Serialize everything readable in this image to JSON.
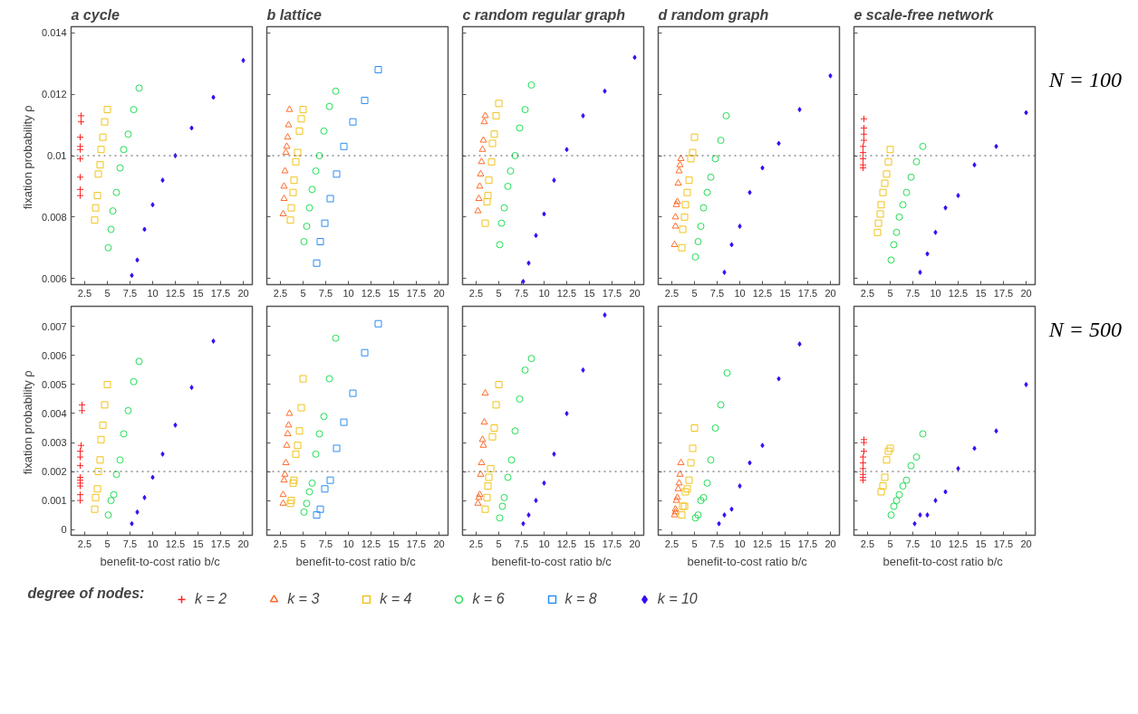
{
  "chart_data": [
    {
      "type": "scatter",
      "title": "a  cycle",
      "ylabel": "fixation probability  ρ",
      "xlim": [
        1,
        21
      ],
      "xticks": [
        2.5,
        5,
        7.5,
        10,
        12.5,
        15,
        17.5,
        20
      ],
      "ylim": [
        0.0058,
        0.0142
      ],
      "yticks": [
        0.006,
        0.008,
        0.01,
        0.012,
        0.014
      ],
      "ref_lines": [
        {
          "axis": "y",
          "value": 0.01,
          "line_style": "dotted"
        }
      ],
      "grid": false,
      "series": [
        {
          "color": "#ff2020",
          "marker": "cross",
          "x": [
            2.1,
            2.1,
            2.0,
            2.0,
            2.0,
            2.0,
            2.0,
            2.0,
            2.0
          ],
          "values": [
            0.0113,
            0.0111,
            0.0106,
            0.0103,
            0.0102,
            0.0099,
            0.0093,
            0.0089,
            0.0087
          ]
        },
        {
          "color": "#f2c21b",
          "marker": "square",
          "x": [
            5.0,
            4.7,
            4.5,
            4.3,
            4.2,
            4.0,
            3.9,
            3.7,
            3.6
          ],
          "values": [
            0.0115,
            0.0111,
            0.0106,
            0.0102,
            0.0097,
            0.0094,
            0.0087,
            0.0083,
            0.0079
          ]
        },
        {
          "color": "#22dd55",
          "marker": "circle",
          "x": [
            8.5,
            7.9,
            7.3,
            6.8,
            6.4,
            6.0,
            5.6,
            5.4,
            5.1
          ],
          "values": [
            0.0122,
            0.0115,
            0.0107,
            0.0102,
            0.0096,
            0.0088,
            0.0082,
            0.0076,
            0.007
          ]
        },
        {
          "color": "#3a0bf5",
          "marker": "diamond",
          "x": [
            20,
            16.7,
            14.3,
            12.5,
            11.1,
            10,
            9.1,
            8.3,
            7.7
          ],
          "values": [
            0.0131,
            0.0119,
            0.0109,
            0.01,
            0.0092,
            0.0084,
            0.0076,
            0.0066,
            0.0061
          ]
        }
      ]
    },
    {
      "type": "scatter",
      "title": "b  lattice",
      "xlim": [
        1,
        21
      ],
      "xticks": [
        2.5,
        5,
        7.5,
        10,
        12.5,
        15,
        17.5,
        20
      ],
      "ylim": [
        0.0058,
        0.0142
      ],
      "yticks": [
        0.006,
        0.008,
        0.01,
        0.012,
        0.014
      ],
      "tick_labels": "x",
      "ref_lines": [
        {
          "axis": "y",
          "value": 0.01,
          "line_style": "dotted"
        }
      ],
      "grid": false,
      "series": [
        {
          "color": "#ff6a28",
          "marker": "triangle",
          "x": [
            3.5,
            3.4,
            3.3,
            3.2,
            3.1,
            3.0,
            2.9,
            2.9,
            2.8
          ],
          "values": [
            0.0115,
            0.011,
            0.0106,
            0.0103,
            0.0101,
            0.0095,
            0.009,
            0.0086,
            0.0081
          ]
        },
        {
          "color": "#f2c21b",
          "marker": "square",
          "x": [
            5.0,
            4.8,
            4.6,
            4.4,
            4.2,
            4.0,
            3.9,
            3.7,
            3.6
          ],
          "values": [
            0.0115,
            0.0112,
            0.0108,
            0.0101,
            0.0098,
            0.0092,
            0.0088,
            0.0083,
            0.0079
          ]
        },
        {
          "color": "#22dd55",
          "marker": "circle",
          "x": [
            8.6,
            7.9,
            7.3,
            6.8,
            6.4,
            6.0,
            5.7,
            5.4,
            5.1
          ],
          "values": [
            0.0121,
            0.0116,
            0.0108,
            0.01,
            0.0095,
            0.0089,
            0.0083,
            0.0077,
            0.0072
          ]
        },
        {
          "color": "#2b8ef0",
          "marker": "square",
          "x": [
            13.3,
            11.8,
            10.5,
            9.5,
            8.7,
            8.0,
            7.4,
            6.9,
            6.5
          ],
          "values": [
            0.0128,
            0.0118,
            0.0111,
            0.0103,
            0.0094,
            0.0086,
            0.0078,
            0.0072,
            0.0065
          ]
        }
      ]
    },
    {
      "type": "scatter",
      "title": "c  random regular graph",
      "xlim": [
        1,
        21
      ],
      "xticks": [
        2.5,
        5,
        7.5,
        10,
        12.5,
        15,
        17.5,
        20
      ],
      "ylim": [
        0.0058,
        0.0142
      ],
      "yticks": [
        0.006,
        0.008,
        0.01,
        0.012,
        0.014
      ],
      "tick_labels": "x",
      "ref_lines": [
        {
          "axis": "y",
          "value": 0.01,
          "line_style": "dotted"
        }
      ],
      "grid": false,
      "series": [
        {
          "color": "#ff6a28",
          "marker": "triangle",
          "x": [
            3.5,
            3.4,
            3.3,
            3.2,
            3.1,
            3.0,
            2.9,
            2.8,
            2.7
          ],
          "values": [
            0.0113,
            0.0111,
            0.0105,
            0.0102,
            0.0098,
            0.0094,
            0.009,
            0.0086,
            0.0082
          ]
        },
        {
          "color": "#f2c21b",
          "marker": "square",
          "x": [
            5.0,
            4.7,
            4.5,
            4.3,
            4.2,
            3.9,
            3.8,
            3.7,
            3.5
          ],
          "values": [
            0.0117,
            0.0113,
            0.0107,
            0.0104,
            0.0098,
            0.0092,
            0.0087,
            0.0085,
            0.0078
          ]
        },
        {
          "color": "#22dd55",
          "marker": "circle",
          "x": [
            8.6,
            7.9,
            7.3,
            6.8,
            6.3,
            6.0,
            5.6,
            5.3,
            5.1
          ],
          "values": [
            0.0123,
            0.0115,
            0.0109,
            0.01,
            0.0095,
            0.009,
            0.0083,
            0.0078,
            0.0071
          ]
        },
        {
          "color": "#3a0bf5",
          "marker": "diamond",
          "x": [
            20,
            16.7,
            14.3,
            12.5,
            11.1,
            10,
            9.1,
            8.3,
            7.7
          ],
          "values": [
            0.0132,
            0.0121,
            0.0113,
            0.0102,
            0.0092,
            0.0081,
            0.0074,
            0.0065,
            0.0059
          ]
        }
      ]
    },
    {
      "type": "scatter",
      "title": "d  random graph",
      "xlim": [
        1,
        21
      ],
      "xticks": [
        2.5,
        5,
        7.5,
        10,
        12.5,
        15,
        17.5,
        20
      ],
      "ylim": [
        0.0058,
        0.0142
      ],
      "yticks": [
        0.006,
        0.008,
        0.01,
        0.012,
        0.014
      ],
      "tick_labels": "x",
      "ref_lines": [
        {
          "axis": "y",
          "value": 0.01,
          "line_style": "dotted"
        }
      ],
      "grid": false,
      "series": [
        {
          "color": "#ff6a28",
          "marker": "triangle",
          "x": [
            3.5,
            3.4,
            3.3,
            3.2,
            3.1,
            3.0,
            2.9,
            2.9,
            2.8
          ],
          "values": [
            0.0099,
            0.0097,
            0.0095,
            0.0091,
            0.0085,
            0.0084,
            0.008,
            0.0077,
            0.0071
          ]
        },
        {
          "color": "#f2c21b",
          "marker": "square",
          "x": [
            5.0,
            4.8,
            4.6,
            4.4,
            4.2,
            4.0,
            3.9,
            3.7,
            3.6
          ],
          "values": [
            0.0106,
            0.0101,
            0.0099,
            0.0092,
            0.0088,
            0.0084,
            0.008,
            0.0076,
            0.007
          ]
        },
        {
          "color": "#22dd55",
          "marker": "circle",
          "x": [
            8.5,
            7.9,
            7.3,
            6.8,
            6.4,
            6.0,
            5.7,
            5.4,
            5.1
          ],
          "values": [
            0.0113,
            0.0105,
            0.0099,
            0.0093,
            0.0088,
            0.0083,
            0.0077,
            0.0072,
            0.0067
          ]
        },
        {
          "color": "#3a0bf5",
          "marker": "diamond",
          "x": [
            20,
            16.6,
            14.3,
            12.5,
            11.1,
            10,
            9.1,
            8.3
          ],
          "values": [
            0.0126,
            0.0115,
            0.0104,
            0.0096,
            0.0088,
            0.0077,
            0.0071,
            0.0062
          ]
        }
      ]
    },
    {
      "type": "scatter",
      "title": "e  scale-free network",
      "xlim": [
        1,
        21
      ],
      "xticks": [
        2.5,
        5,
        7.5,
        10,
        12.5,
        15,
        17.5,
        20
      ],
      "ylim": [
        0.0058,
        0.0142
      ],
      "yticks": [
        0.006,
        0.008,
        0.01,
        0.012,
        0.014
      ],
      "tick_labels": "x",
      "ref_lines": [
        {
          "axis": "y",
          "value": 0.01,
          "line_style": "dotted"
        }
      ],
      "grid": false,
      "annotations": [
        "N = 100"
      ],
      "series": [
        {
          "color": "#ff2020",
          "marker": "cross",
          "x": [
            2.1,
            2.1,
            2.1,
            2.1,
            2.0,
            2.0,
            2.0,
            2.0,
            2.0
          ],
          "values": [
            0.0112,
            0.0109,
            0.0107,
            0.0105,
            0.0103,
            0.0101,
            0.0099,
            0.0097,
            0.0096
          ]
        },
        {
          "color": "#f2c21b",
          "marker": "square",
          "x": [
            5.0,
            4.8,
            4.6,
            4.4,
            4.2,
            4.0,
            3.9,
            3.7,
            3.6
          ],
          "values": [
            0.0102,
            0.0098,
            0.0094,
            0.0091,
            0.0088,
            0.0084,
            0.0081,
            0.0078,
            0.0075
          ]
        },
        {
          "color": "#22dd55",
          "marker": "circle",
          "x": [
            8.6,
            7.9,
            7.3,
            6.8,
            6.4,
            6.0,
            5.7,
            5.4,
            5.1
          ],
          "values": [
            0.0103,
            0.0098,
            0.0093,
            0.0088,
            0.0084,
            0.008,
            0.0075,
            0.0071,
            0.0066
          ]
        },
        {
          "color": "#3a0bf5",
          "marker": "diamond",
          "x": [
            20,
            16.7,
            14.3,
            12.5,
            11.1,
            10,
            9.1,
            8.3
          ],
          "values": [
            0.0114,
            0.0103,
            0.0097,
            0.0087,
            0.0083,
            0.0075,
            0.0068,
            0.0062
          ]
        }
      ]
    },
    {
      "type": "scatter",
      "xlabel": "benefit-to-cost ratio  b/c",
      "ylabel": "fixation probability  ρ",
      "xlim": [
        1,
        21
      ],
      "xticks": [
        2.5,
        5,
        7.5,
        10,
        12.5,
        15,
        17.5,
        20
      ],
      "ylim": [
        -0.0002,
        0.0077
      ],
      "yticks": [
        0,
        0.001,
        0.002,
        0.003,
        0.004,
        0.005,
        0.006,
        0.007
      ],
      "ref_lines": [
        {
          "axis": "y",
          "value": 0.002,
          "line_style": "dotted"
        }
      ],
      "legend": "bottom",
      "legend_title": "degree of nodes:",
      "grid": false,
      "series": [
        {
          "name": "k = 2",
          "color": "#ff2020",
          "marker": "cross",
          "x": [
            2.2,
            2.2,
            2.1,
            2.0,
            2.0,
            2.0,
            2.0,
            2.0,
            2.0,
            2.0,
            2.0,
            2.0
          ],
          "values": [
            0.0043,
            0.0041,
            0.0029,
            0.0027,
            0.0025,
            0.0022,
            0.0018,
            0.0017,
            0.0016,
            0.0015,
            0.0012,
            0.001
          ]
        },
        {
          "name": "k = 4",
          "color": "#f2c21b",
          "marker": "square",
          "x": [
            5.0,
            4.7,
            4.5,
            4.3,
            4.2,
            4.0,
            3.9,
            3.7,
            3.6
          ],
          "values": [
            0.005,
            0.0043,
            0.0036,
            0.0031,
            0.0024,
            0.002,
            0.0014,
            0.0011,
            0.0007
          ]
        },
        {
          "name": "k = 6",
          "color": "#22dd55",
          "marker": "circle",
          "x": [
            8.5,
            7.9,
            7.3,
            6.8,
            6.4,
            6.0,
            5.7,
            5.4,
            5.1
          ],
          "values": [
            0.0058,
            0.0051,
            0.0041,
            0.0033,
            0.0024,
            0.0019,
            0.0012,
            0.001,
            0.0005
          ]
        },
        {
          "name": "k = 10",
          "color": "#3a0bf5",
          "marker": "diamond",
          "x": [
            16.7,
            14.3,
            12.5,
            11.1,
            10,
            9.1,
            8.3,
            7.7
          ],
          "values": [
            0.0065,
            0.0049,
            0.0036,
            0.0026,
            0.0018,
            0.0011,
            0.0006,
            0.0002
          ]
        }
      ]
    },
    {
      "type": "scatter",
      "xlabel": "benefit-to-cost ratio  b/c",
      "xlim": [
        1,
        21
      ],
      "xticks": [
        2.5,
        5,
        7.5,
        10,
        12.5,
        15,
        17.5,
        20
      ],
      "ylim": [
        -0.0002,
        0.0077
      ],
      "yticks": [
        0,
        0.001,
        0.002,
        0.003,
        0.004,
        0.005,
        0.006,
        0.007
      ],
      "tick_labels": "x",
      "ref_lines": [
        {
          "axis": "y",
          "value": 0.002,
          "line_style": "dotted"
        }
      ],
      "legend": "bottom",
      "grid": false,
      "series": [
        {
          "name": "k = 3",
          "color": "#ff6a28",
          "marker": "triangle",
          "x": [
            3.5,
            3.4,
            3.3,
            3.2,
            3.1,
            3.0,
            2.9,
            2.8,
            2.8
          ],
          "values": [
            0.004,
            0.0036,
            0.0033,
            0.0029,
            0.0023,
            0.0019,
            0.0017,
            0.0012,
            0.0009
          ]
        },
        {
          "color": "#f2c21b",
          "marker": "square",
          "x": [
            5.0,
            4.8,
            4.6,
            4.4,
            4.2,
            4.0,
            3.9,
            3.7,
            3.6
          ],
          "values": [
            0.0052,
            0.0042,
            0.0034,
            0.0029,
            0.0026,
            0.0017,
            0.0016,
            0.001,
            0.0009
          ]
        },
        {
          "color": "#22dd55",
          "marker": "circle",
          "x": [
            8.6,
            7.9,
            7.3,
            6.8,
            6.4,
            6.0,
            5.7,
            5.4,
            5.1
          ],
          "values": [
            0.0066,
            0.0052,
            0.0039,
            0.0033,
            0.0026,
            0.0016,
            0.0013,
            0.0009,
            0.0006
          ]
        },
        {
          "name": "k = 8",
          "color": "#2b8ef0",
          "marker": "square",
          "x": [
            13.3,
            11.8,
            10.5,
            9.5,
            8.7,
            8.0,
            7.4,
            6.9,
            6.5
          ],
          "values": [
            0.0071,
            0.0061,
            0.0047,
            0.0037,
            0.0028,
            0.0017,
            0.0014,
            0.0007,
            0.0005
          ]
        }
      ]
    },
    {
      "type": "scatter",
      "xlabel": "benefit-to-cost ratio  b/c",
      "xlim": [
        1,
        21
      ],
      "xticks": [
        2.5,
        5,
        7.5,
        10,
        12.5,
        15,
        17.5,
        20
      ],
      "ylim": [
        -0.0002,
        0.0077
      ],
      "yticks": [
        0,
        0.001,
        0.002,
        0.003,
        0.004,
        0.005,
        0.006,
        0.007
      ],
      "tick_labels": "x",
      "ref_lines": [
        {
          "axis": "y",
          "value": 0.002,
          "line_style": "dotted"
        }
      ],
      "grid": false,
      "series": [
        {
          "color": "#ff6a28",
          "marker": "triangle",
          "x": [
            3.5,
            3.4,
            3.2,
            3.3,
            3.1,
            3.0,
            2.9,
            2.8,
            2.7
          ],
          "values": [
            0.0047,
            0.0037,
            0.0031,
            0.0029,
            0.0023,
            0.0019,
            0.0012,
            0.0011,
            0.0009
          ]
        },
        {
          "color": "#f2c21b",
          "marker": "square",
          "x": [
            5.0,
            4.7,
            4.5,
            4.3,
            4.1,
            3.9,
            3.8,
            3.7,
            3.5
          ],
          "values": [
            0.005,
            0.0043,
            0.0035,
            0.0032,
            0.0021,
            0.0018,
            0.0015,
            0.0011,
            0.0007
          ]
        },
        {
          "color": "#22dd55",
          "marker": "circle",
          "x": [
            8.6,
            7.9,
            7.3,
            6.8,
            6.4,
            6.0,
            5.6,
            5.4,
            5.1
          ],
          "values": [
            0.0059,
            0.0055,
            0.0045,
            0.0034,
            0.0024,
            0.0018,
            0.0011,
            0.0008,
            0.0004
          ]
        },
        {
          "color": "#3a0bf5",
          "marker": "diamond",
          "x": [
            16.7,
            14.3,
            12.5,
            11.1,
            10,
            9.1,
            8.3,
            7.7
          ],
          "values": [
            0.0074,
            0.0055,
            0.004,
            0.0026,
            0.0016,
            0.001,
            0.0005,
            0.0002
          ]
        }
      ]
    },
    {
      "type": "scatter",
      "xlabel": "benefit-to-cost ratio  b/c",
      "xlim": [
        1,
        21
      ],
      "xticks": [
        2.5,
        5,
        7.5,
        10,
        12.5,
        15,
        17.5,
        20
      ],
      "ylim": [
        -0.0002,
        0.0077
      ],
      "yticks": [
        0,
        0.001,
        0.002,
        0.003,
        0.004,
        0.005,
        0.006,
        0.007
      ],
      "tick_labels": "x",
      "ref_lines": [
        {
          "axis": "y",
          "value": 0.002,
          "line_style": "dotted"
        }
      ],
      "grid": false,
      "series": [
        {
          "color": "#ff6a28",
          "marker": "triangle",
          "x": [
            3.5,
            3.4,
            3.3,
            3.2,
            3.1,
            3.0,
            2.9,
            2.9,
            2.8
          ],
          "values": [
            0.0023,
            0.0019,
            0.0016,
            0.0014,
            0.0011,
            0.001,
            0.0007,
            0.0006,
            0.0005
          ]
        },
        {
          "color": "#f2c21b",
          "marker": "square",
          "x": [
            5.0,
            4.8,
            4.6,
            4.4,
            4.2,
            4.0,
            3.9,
            3.7,
            3.6
          ],
          "values": [
            0.0035,
            0.0028,
            0.0023,
            0.0017,
            0.0014,
            0.0013,
            0.0008,
            0.0008,
            0.0005
          ]
        },
        {
          "color": "#22dd55",
          "marker": "circle",
          "x": [
            8.6,
            7.9,
            7.3,
            6.8,
            6.4,
            6.0,
            5.7,
            5.4,
            5.1
          ],
          "values": [
            0.0054,
            0.0043,
            0.0035,
            0.0024,
            0.0016,
            0.0011,
            0.001,
            0.0005,
            0.0004
          ]
        },
        {
          "color": "#3a0bf5",
          "marker": "diamond",
          "x": [
            16.6,
            14.3,
            12.5,
            11.1,
            10,
            9.1,
            8.3,
            7.7
          ],
          "values": [
            0.0064,
            0.0052,
            0.0029,
            0.0023,
            0.0015,
            0.0007,
            0.0005,
            0.0002
          ]
        }
      ]
    },
    {
      "type": "scatter",
      "xlabel": "benefit-to-cost ratio  b/c",
      "xlim": [
        1,
        21
      ],
      "xticks": [
        2.5,
        5,
        7.5,
        10,
        12.5,
        15,
        17.5,
        20
      ],
      "ylim": [
        -0.0002,
        0.0077
      ],
      "yticks": [
        0,
        0.001,
        0.002,
        0.003,
        0.004,
        0.005,
        0.006,
        0.007
      ],
      "tick_labels": "x",
      "ref_lines": [
        {
          "axis": "y",
          "value": 0.002,
          "line_style": "dotted"
        }
      ],
      "grid": false,
      "annotations": [
        "N = 500"
      ],
      "series": [
        {
          "color": "#ff2020",
          "marker": "cross",
          "x": [
            2.1,
            2.1,
            2.1,
            2.0,
            2.0,
            2.0,
            2.0,
            2.0,
            2.0
          ],
          "values": [
            0.0031,
            0.003,
            0.0027,
            0.0025,
            0.0023,
            0.0021,
            0.0019,
            0.0018,
            0.0017
          ]
        },
        {
          "color": "#f2c21b",
          "marker": "square",
          "x": [
            5.0,
            4.8,
            4.6,
            4.4,
            4.2,
            4.0
          ],
          "values": [
            0.0028,
            0.0027,
            0.0024,
            0.0018,
            0.0015,
            0.0013
          ]
        },
        {
          "color": "#22dd55",
          "marker": "circle",
          "x": [
            8.6,
            7.9,
            7.3,
            6.8,
            6.4,
            6.0,
            5.7,
            5.4,
            5.1
          ],
          "values": [
            0.0033,
            0.0025,
            0.0022,
            0.0017,
            0.0015,
            0.0012,
            0.001,
            0.0008,
            0.0005
          ]
        },
        {
          "color": "#3a0bf5",
          "marker": "diamond",
          "x": [
            20,
            16.7,
            14.3,
            12.5,
            11.1,
            10,
            9.1,
            8.3,
            7.7
          ],
          "values": [
            0.005,
            0.0034,
            0.0028,
            0.0021,
            0.0013,
            0.001,
            0.0005,
            0.0005,
            0.0002
          ]
        }
      ]
    }
  ]
}
